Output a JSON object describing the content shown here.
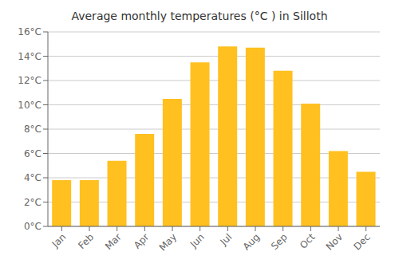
{
  "chart_data": {
    "type": "bar",
    "title": "Average monthly temperatures (°C ) in Silloth",
    "categories": [
      "Jan",
      "Feb",
      "Mar",
      "Apr",
      "May",
      "Jun",
      "Jul",
      "Aug",
      "Sep",
      "Oct",
      "Nov",
      "Dec"
    ],
    "values": [
      3.8,
      3.8,
      5.4,
      7.6,
      10.5,
      13.5,
      14.8,
      14.7,
      12.8,
      10.1,
      6.2,
      4.5
    ],
    "color": "#FFC020",
    "ylim": [
      0,
      16
    ],
    "yticks": [
      {
        "value": 0,
        "label": "0°C"
      },
      {
        "value": 2,
        "label": "2°C"
      },
      {
        "value": 4,
        "label": "4°C"
      },
      {
        "value": 6,
        "label": "6°C"
      },
      {
        "value": 8,
        "label": "8°C"
      },
      {
        "value": 10,
        "label": "10°C"
      },
      {
        "value": 12,
        "label": "12°C"
      },
      {
        "value": 14,
        "label": "14°C"
      },
      {
        "value": 16,
        "label": "16°C"
      }
    ],
    "grid": true
  }
}
